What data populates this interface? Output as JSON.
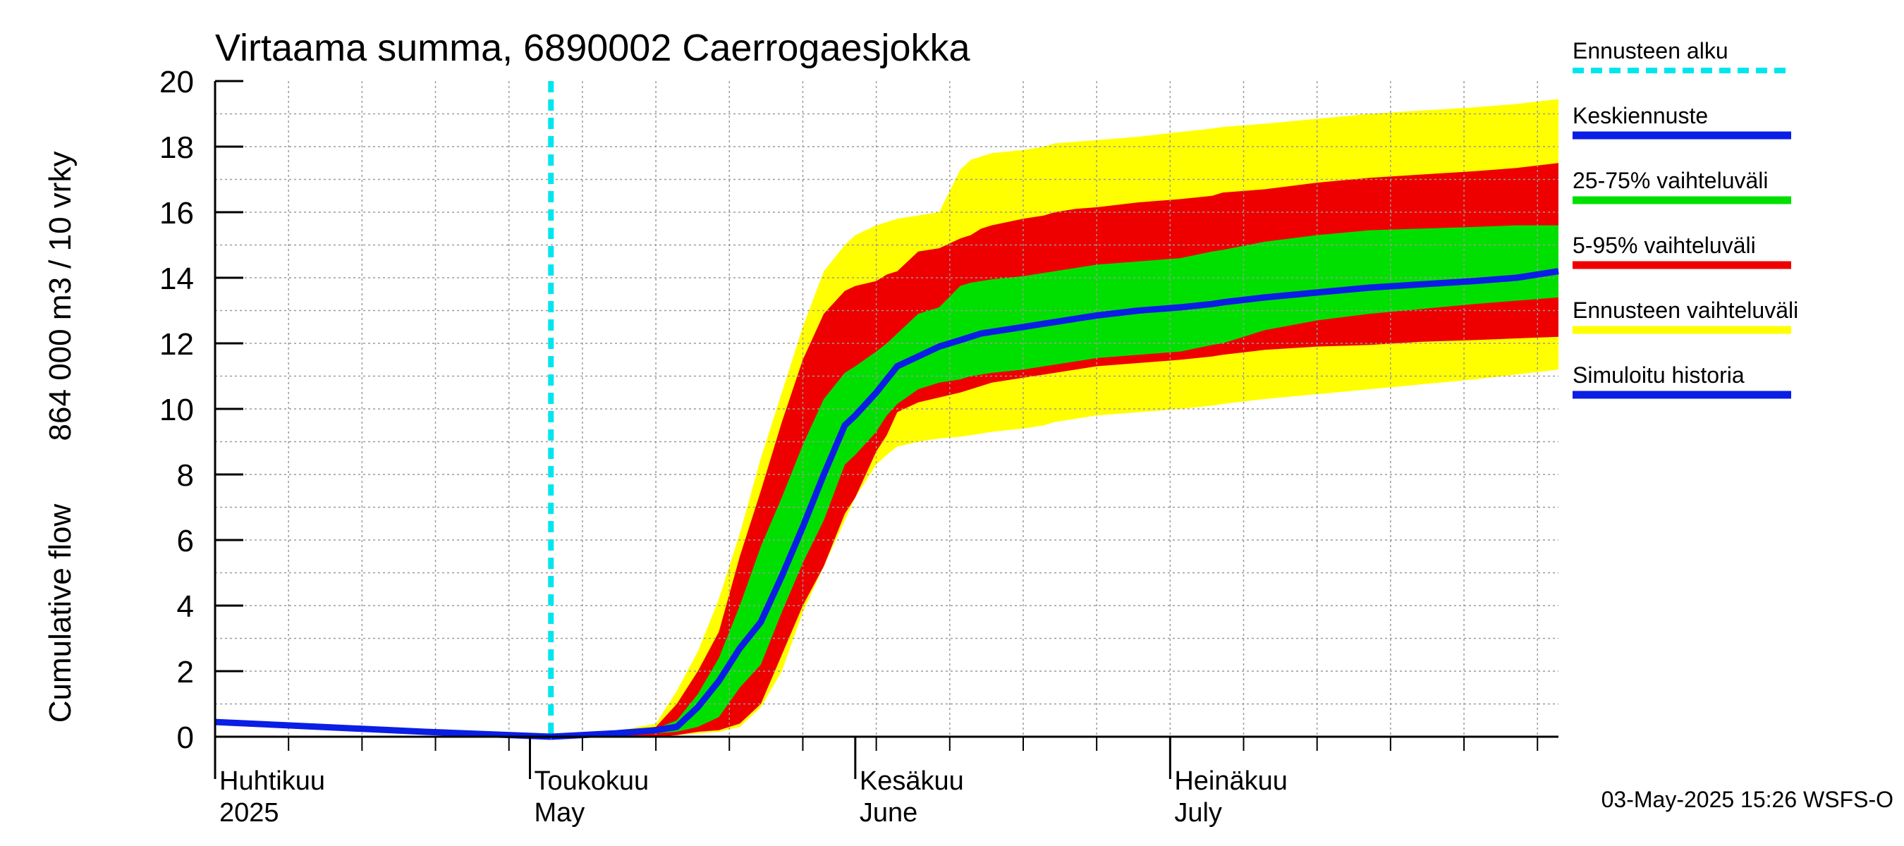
{
  "chart_data": {
    "type": "area",
    "title": "Virtaama summa, 6890002 Caerrogaesjokka",
    "ylabel_lines": [
      "Cumulative flow",
      "864 000 m3 / 10 vrky"
    ],
    "ylim": [
      0,
      20
    ],
    "yticks": [
      0,
      2,
      4,
      6,
      8,
      10,
      12,
      14,
      16,
      18,
      20
    ],
    "x_range_day": [
      0,
      128
    ],
    "month_labels": [
      {
        "day": 0,
        "fi": "Huhtikuu",
        "en": "2025"
      },
      {
        "day": 30,
        "fi": "Toukokuu",
        "en": "May"
      },
      {
        "day": 61,
        "fi": "Kesäkuu",
        "en": "June"
      },
      {
        "day": 91,
        "fi": "Heinäkuu",
        "en": "July"
      }
    ],
    "forecast_start_day": 32,
    "colors": {
      "forecast_start": "#00e5ee",
      "median": "#0a1ee6",
      "band_25_75": "#00e000",
      "band_5_95": "#ee0000",
      "band_range": "#ffff00",
      "history": "#0a1ee6",
      "grid": "#9a9a9a"
    },
    "x_days": [
      0,
      10,
      20,
      32,
      38,
      42,
      44,
      46,
      48,
      50,
      52,
      54,
      56,
      58,
      60,
      61,
      63,
      64,
      65,
      67,
      69,
      71,
      72,
      73,
      74,
      77,
      79,
      80,
      82,
      84,
      88,
      92,
      95,
      96,
      100,
      105,
      110,
      115,
      120,
      124,
      128
    ],
    "series": [
      {
        "name": "Ennusteen vaihteluväli (max)",
        "values": [
          0.45,
          0.3,
          0.15,
          0,
          0.15,
          0.4,
          1.4,
          2.6,
          4.2,
          6.2,
          8.5,
          10.5,
          12.5,
          14.2,
          15,
          15.3,
          15.6,
          15.7,
          15.8,
          15.9,
          16,
          17.3,
          17.6,
          17.7,
          17.8,
          17.9,
          18,
          18.1,
          18.15,
          18.2,
          18.3,
          18.45,
          18.55,
          18.6,
          18.7,
          18.85,
          19,
          19.1,
          19.2,
          19.3,
          19.45
        ]
      },
      {
        "name": "5-95% max",
        "values": [
          0.45,
          0.3,
          0.15,
          0,
          0.15,
          0.3,
          1.0,
          2.0,
          3.2,
          5.5,
          7.5,
          9.6,
          11.5,
          12.9,
          13.6,
          13.75,
          13.9,
          14.1,
          14.2,
          14.8,
          14.9,
          15.2,
          15.3,
          15.5,
          15.6,
          15.8,
          15.9,
          16.0,
          16.1,
          16.15,
          16.3,
          16.4,
          16.5,
          16.6,
          16.7,
          16.9,
          17.05,
          17.15,
          17.25,
          17.35,
          17.5
        ]
      },
      {
        "name": "25-75% max",
        "values": [
          0.45,
          0.3,
          0.15,
          0,
          0.1,
          0.25,
          0.5,
          1.3,
          2.4,
          4.0,
          5.8,
          7.3,
          8.9,
          10.3,
          11.1,
          11.3,
          11.75,
          12.0,
          12.3,
          12.9,
          13.1,
          13.75,
          13.85,
          13.9,
          13.95,
          14.05,
          14.15,
          14.2,
          14.3,
          14.4,
          14.5,
          14.6,
          14.8,
          14.85,
          15.1,
          15.3,
          15.45,
          15.5,
          15.55,
          15.6,
          15.6
        ]
      },
      {
        "name": "Keskiennuste",
        "values": [
          0.45,
          0.3,
          0.15,
          0,
          0.1,
          0.2,
          0.3,
          0.9,
          1.7,
          2.7,
          3.5,
          4.9,
          6.4,
          8.0,
          9.5,
          9.8,
          10.5,
          10.9,
          11.3,
          11.6,
          11.9,
          12.1,
          12.2,
          12.3,
          12.35,
          12.5,
          12.6,
          12.65,
          12.75,
          12.85,
          13.0,
          13.1,
          13.2,
          13.25,
          13.4,
          13.55,
          13.7,
          13.8,
          13.9,
          14.0,
          14.2
        ]
      },
      {
        "name": "25-75% min",
        "values": [
          0.45,
          0.3,
          0.15,
          0,
          0.05,
          0.1,
          0.15,
          0.3,
          0.6,
          1.5,
          2.2,
          3.8,
          5.3,
          6.6,
          8.3,
          8.6,
          9.3,
          9.8,
          10.15,
          10.6,
          10.8,
          10.9,
          11.0,
          11.05,
          11.1,
          11.2,
          11.3,
          11.35,
          11.45,
          11.55,
          11.65,
          11.75,
          11.95,
          12.0,
          12.4,
          12.7,
          12.9,
          13.05,
          13.2,
          13.3,
          13.4
        ]
      },
      {
        "name": "5-95% min",
        "values": [
          0.45,
          0.3,
          0.15,
          0,
          0.0,
          0.0,
          0.05,
          0.15,
          0.2,
          0.4,
          1.0,
          2.5,
          4.0,
          5.2,
          6.8,
          7.3,
          8.7,
          9.2,
          9.9,
          10.2,
          10.35,
          10.5,
          10.6,
          10.7,
          10.8,
          10.95,
          11.05,
          11.1,
          11.2,
          11.3,
          11.4,
          11.5,
          11.6,
          11.65,
          11.8,
          11.9,
          11.95,
          12.05,
          12.1,
          12.15,
          12.2
        ]
      },
      {
        "name": "Ennusteen vaihteluväli (min)",
        "values": [
          0.45,
          0.3,
          0.15,
          0,
          0.0,
          0.0,
          0.05,
          0.1,
          0.15,
          0.3,
          0.9,
          2.0,
          3.8,
          5.2,
          6.6,
          7.3,
          8.3,
          8.6,
          8.85,
          9.0,
          9.1,
          9.15,
          9.2,
          9.25,
          9.3,
          9.4,
          9.5,
          9.6,
          9.7,
          9.8,
          9.9,
          10.0,
          10.1,
          10.15,
          10.3,
          10.45,
          10.6,
          10.75,
          10.9,
          11.05,
          11.2
        ]
      }
    ],
    "legend": [
      {
        "key": "forecast_start",
        "label": "Ennusteen alku",
        "style": "dashed"
      },
      {
        "key": "median",
        "label": "Keskiennuste",
        "style": "solid"
      },
      {
        "key": "band_25_75",
        "label": "25-75% vaihteluväli",
        "style": "solid"
      },
      {
        "key": "band_5_95",
        "label": "5-95% vaihteluväli",
        "style": "solid"
      },
      {
        "key": "band_range",
        "label": "Ennusteen vaihteluväli",
        "style": "solid"
      },
      {
        "key": "history",
        "label": "Simuloitu historia",
        "style": "solid"
      }
    ],
    "timestamp": "03-May-2025 15:26 WSFS-O"
  }
}
